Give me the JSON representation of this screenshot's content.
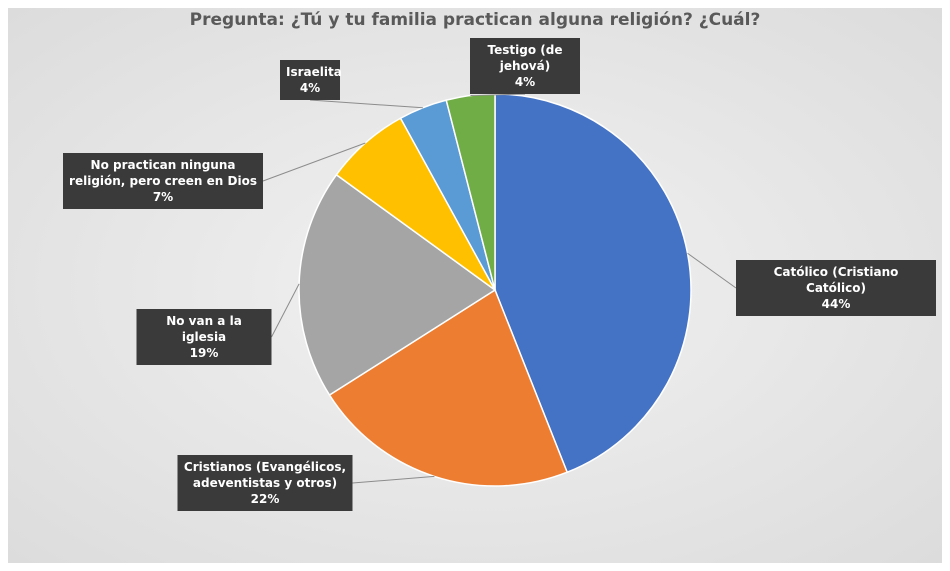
{
  "chart_data": {
    "type": "pie",
    "title": "Pregunta: ¿Tú y tu familia practican alguna religión? ¿Cuál?",
    "categories": [
      "Católico (Cristiano Católico)",
      "Cristianos (Evangélicos, adeventistas y otros)",
      "No van a la iglesia",
      "No practican ninguna religión, pero creen en Dios",
      "Israelita",
      "Testigo (de jehová)"
    ],
    "values": [
      44,
      22,
      19,
      7,
      4,
      4
    ],
    "value_labels": [
      "44%",
      "22%",
      "19%",
      "7%",
      "4%",
      "4%"
    ],
    "colors": [
      "#4472c4",
      "#ed7d31",
      "#a5a5a5",
      "#ffc000",
      "#5b9bd5",
      "#70ad47"
    ]
  }
}
